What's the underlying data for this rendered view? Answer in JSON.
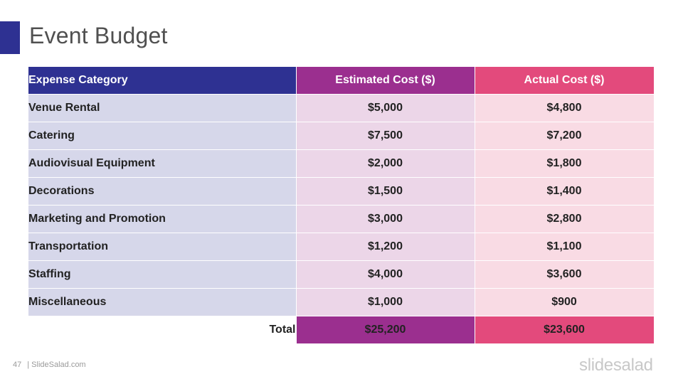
{
  "slide": {
    "title": "Event Budget"
  },
  "table": {
    "headers": {
      "category": "Expense Category",
      "estimated": "Estimated Cost ($)",
      "actual": "Actual Cost ($)"
    },
    "rows": [
      {
        "category": "Venue Rental",
        "estimated": "$5,000",
        "actual": "$4,800"
      },
      {
        "category": "Catering",
        "estimated": "$7,500",
        "actual": "$7,200"
      },
      {
        "category": "Audiovisual Equipment",
        "estimated": "$2,000",
        "actual": "$1,800"
      },
      {
        "category": "Decorations",
        "estimated": "$1,500",
        "actual": "$1,400"
      },
      {
        "category": "Marketing and Promotion",
        "estimated": "$3,000",
        "actual": "$2,800"
      },
      {
        "category": "Transportation",
        "estimated": "$1,200",
        "actual": "$1,100"
      },
      {
        "category": "Staffing",
        "estimated": "$4,000",
        "actual": "$3,600"
      },
      {
        "category": "Miscellaneous",
        "estimated": "$1,000",
        "actual": "$900"
      }
    ],
    "total": {
      "label": "Total",
      "estimated": "$25,200",
      "actual": "$23,600"
    }
  },
  "footer": {
    "page_number": "47",
    "source": "| SlideSalad.com",
    "logo": "slidesalad"
  },
  "colors": {
    "navy": "#2e3192",
    "purple": "#9b2f8f",
    "pink": "#e34a7c",
    "navy_light": "#d6d7ea",
    "purple_light": "#ecd6e8",
    "pink_light": "#f9dbe4"
  }
}
